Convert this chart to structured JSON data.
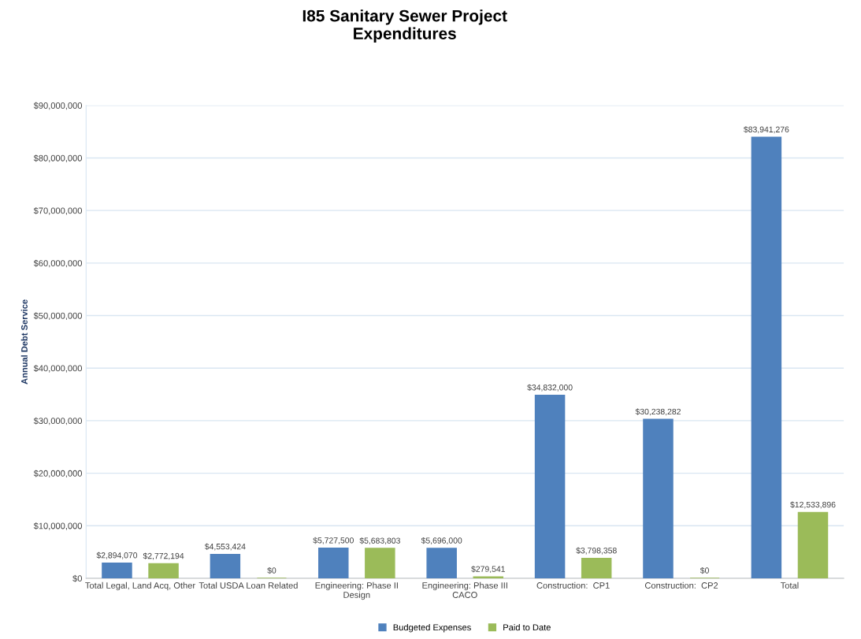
{
  "chart_data": {
    "type": "bar",
    "title": "I85 Sanitary Sewer Project\nExpenditures",
    "ylabel": "Annual Debt Service",
    "categories": [
      "Total Legal, Land Acq, Other",
      "Total USDA Loan Related",
      "Engineering: Phase II\nDesign",
      "Engineering: Phase III\nCACO",
      "Construction:  CP1",
      "Construction:  CP2",
      "Total"
    ],
    "series": [
      {
        "name": "Budgeted Expenses",
        "color": "#4f81bd",
        "values": [
          2894070,
          4553424,
          5727500,
          5696000,
          34832000,
          30238282,
          83941276
        ],
        "value_labels": [
          "$2,894,070",
          "$4,553,424",
          "$5,727,500",
          "$5,696,000",
          "$34,832,000",
          "$30,238,282",
          "$83,941,276"
        ]
      },
      {
        "name": "Paid to Date",
        "color": "#9bbb59",
        "values": [
          2772194,
          0,
          5683803,
          279541,
          3798358,
          0,
          12533896
        ],
        "value_labels": [
          "$2,772,194",
          "$0",
          "$5,683,803",
          "$279,541",
          "$3,798,358",
          "$0",
          "$12,533,896"
        ]
      }
    ],
    "ylim": [
      0,
      90000000
    ],
    "yticks": [
      {
        "value": 0,
        "label": "$0"
      },
      {
        "value": 10000000,
        "label": "$10,000,000"
      },
      {
        "value": 20000000,
        "label": "$20,000,000"
      },
      {
        "value": 30000000,
        "label": "$30,000,000"
      },
      {
        "value": 40000000,
        "label": "$40,000,000"
      },
      {
        "value": 50000000,
        "label": "$50,000,000"
      },
      {
        "value": 60000000,
        "label": "$60,000,000"
      },
      {
        "value": 70000000,
        "label": "$70,000,000"
      },
      {
        "value": 80000000,
        "label": "$80,000,000"
      },
      {
        "value": 90000000,
        "label": "$90,000,000"
      }
    ],
    "grid": "y",
    "legend": "bottom"
  }
}
